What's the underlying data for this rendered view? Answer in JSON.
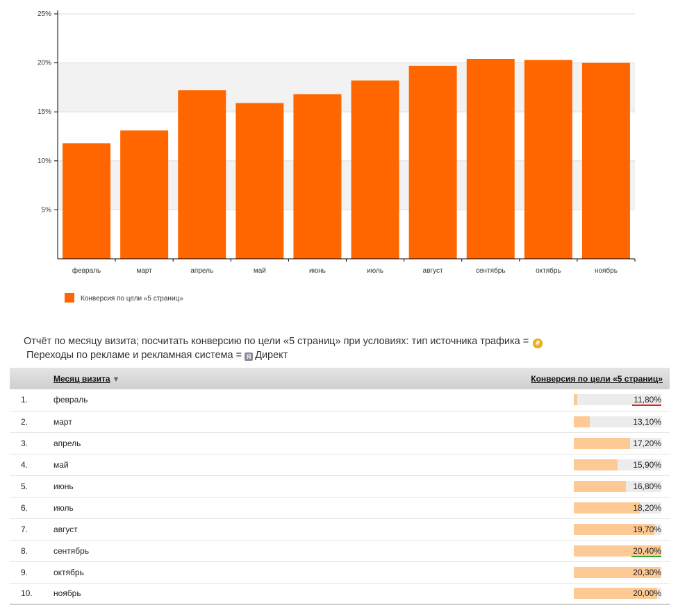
{
  "chart_data": {
    "type": "bar",
    "categories": [
      "февраль",
      "март",
      "апрель",
      "май",
      "июнь",
      "июль",
      "август",
      "сентябрь",
      "октябрь",
      "ноябрь"
    ],
    "series": [
      {
        "name": "Конверсия по цели «5 страниц»",
        "values": [
          11.8,
          13.1,
          17.2,
          15.9,
          16.8,
          18.2,
          19.7,
          20.4,
          20.3,
          20.0
        ]
      }
    ],
    "yticks": [
      "5%",
      "10%",
      "15%",
      "20%",
      "25%"
    ],
    "ylim": [
      0,
      25
    ],
    "title": "",
    "xlabel": "",
    "ylabel": "",
    "legend": "bottom-left",
    "bar_color": "#ff6600",
    "grid": true
  },
  "report": {
    "description_line1": "Отчёт по месяцу визита; посчитать конверсию по цели «5 страниц» при условиях: тип источника трафика =",
    "description_line2": "Переходы по рекламе и рекламная система =",
    "direct_label": "Директ",
    "coin_icon": "ruble-coin-icon",
    "direct_icon": "yandex-direct-icon"
  },
  "table": {
    "header_month": "Месяц визита",
    "header_conversion": "Конверсия по цели «5 страниц»",
    "sort_arrow": "▼",
    "rows": [
      {
        "num": "1.",
        "month": "февраль",
        "value": "11,80%",
        "pct": 11.8,
        "mark": "min"
      },
      {
        "num": "2.",
        "month": "март",
        "value": "13,10%",
        "pct": 13.1,
        "mark": ""
      },
      {
        "num": "3.",
        "month": "апрель",
        "value": "17,20%",
        "pct": 17.2,
        "mark": ""
      },
      {
        "num": "4.",
        "month": "май",
        "value": "15,90%",
        "pct": 15.9,
        "mark": ""
      },
      {
        "num": "5.",
        "month": "июнь",
        "value": "16,80%",
        "pct": 16.8,
        "mark": ""
      },
      {
        "num": "6.",
        "month": "июль",
        "value": "18,20%",
        "pct": 18.2,
        "mark": ""
      },
      {
        "num": "7.",
        "month": "август",
        "value": "19,70%",
        "pct": 19.7,
        "mark": ""
      },
      {
        "num": "8.",
        "month": "сентябрь",
        "value": "20,40%",
        "pct": 20.4,
        "mark": "max"
      },
      {
        "num": "9.",
        "month": "октябрь",
        "value": "20,30%",
        "pct": 20.3,
        "mark": ""
      },
      {
        "num": "10.",
        "month": "ноябрь",
        "value": "20,00%",
        "pct": 20.0,
        "mark": ""
      }
    ]
  }
}
